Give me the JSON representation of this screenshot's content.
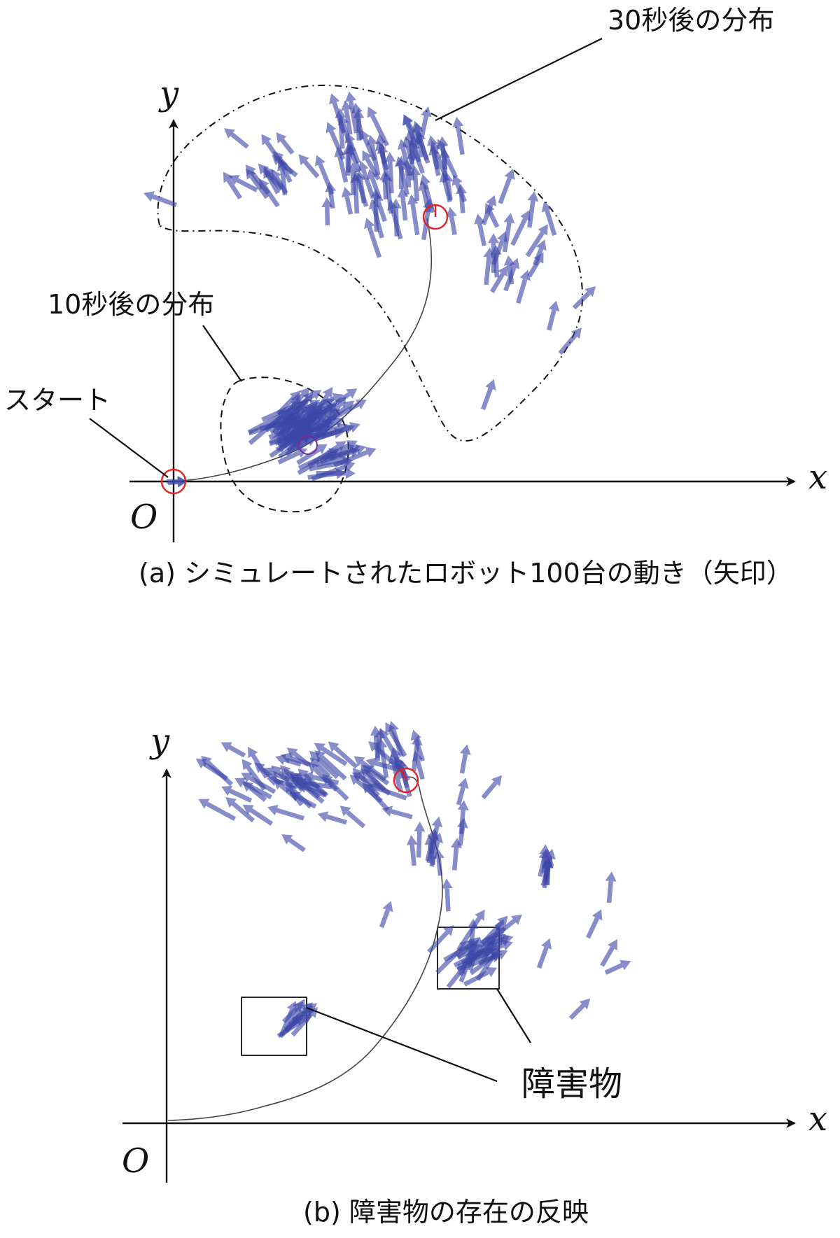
{
  "panel_a": {
    "label_30s": "30秒後の分布",
    "label_10s": "10秒後の分布",
    "label_start": "スタート",
    "axis_x": "x",
    "axis_y": "y",
    "origin": "O",
    "caption": "(a) シミュレートされたロボット100台の動き（矢印）"
  },
  "panel_b": {
    "label_obstacle": "障害物",
    "axis_x": "x",
    "axis_y": "y",
    "origin": "O",
    "caption": "(b) 障害物の存在の反映"
  },
  "colors": {
    "arrow": "#3d47a8",
    "marker": "#e02424",
    "axis": "#111111"
  }
}
